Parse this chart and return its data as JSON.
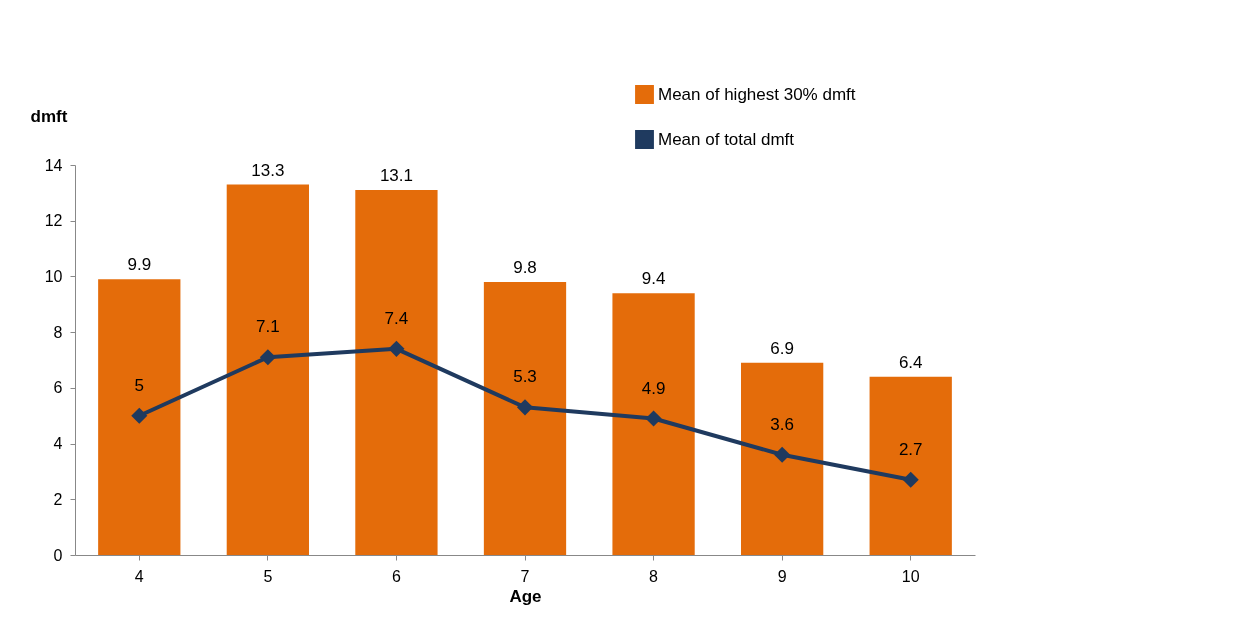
{
  "chart_data": {
    "type": "bar",
    "xlabel": "Age",
    "ylabel": "dmft",
    "categories": [
      "4",
      "5",
      "6",
      "7",
      "8",
      "9",
      "10"
    ],
    "series": [
      {
        "name": "Mean of highest 30% dmft",
        "color": "#e46c0a",
        "values": [
          9.9,
          13.3,
          13.1,
          9.8,
          9.4,
          6.9,
          6.4
        ]
      },
      {
        "name": "Mean of total dmft",
        "type": "line",
        "color": "#1f3a5f",
        "values": [
          5,
          7.1,
          7.4,
          5.3,
          4.9,
          3.6,
          2.7
        ]
      }
    ],
    "ylim": [
      0,
      14
    ],
    "yticks": [
      0,
      2,
      4,
      6,
      8,
      10,
      12,
      14
    ],
    "grid": false,
    "legend": "top right",
    "marker": "diamond",
    "line_style": "solid",
    "data_labels": true
  }
}
